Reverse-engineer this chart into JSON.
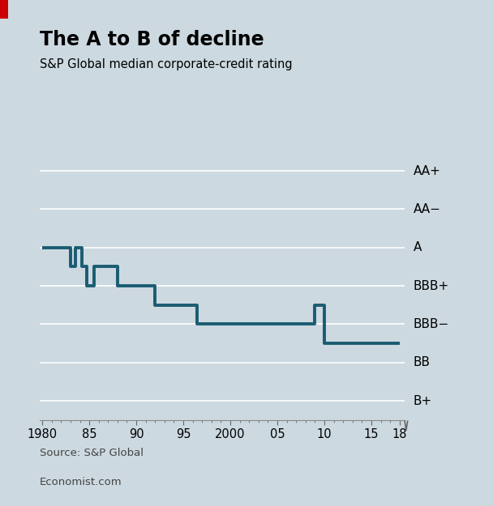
{
  "title": "The A to B of decline",
  "subtitle": "S&P Global median corporate-credit rating",
  "source": "Source: S&P Global",
  "footer": "Economist.com",
  "bg_color": "#ccd9e0",
  "line_color": "#1a5c72",
  "grid_color": "#ffffff",
  "title_color": "#000000",
  "source_color": "#444444",
  "grid_levels": [
    7,
    6,
    5,
    4,
    3,
    2,
    1
  ],
  "grid_labels": [
    "AA+",
    "AA−",
    "A",
    "BBB+",
    "BBB−",
    "BB",
    "B+"
  ],
  "xmin": 1980,
  "xmax": 2018.5,
  "ymin": 0.5,
  "ymax": 7.5,
  "step_data": [
    [
      1980,
      5
    ],
    [
      1983.0,
      5
    ],
    [
      1983.0,
      4.5
    ],
    [
      1983.5,
      4.5
    ],
    [
      1983.5,
      5
    ],
    [
      1984.2,
      5
    ],
    [
      1984.2,
      4.5
    ],
    [
      1984.7,
      4.5
    ],
    [
      1984.7,
      4
    ],
    [
      1985.5,
      4
    ],
    [
      1985.5,
      4.5
    ],
    [
      1988.0,
      4.5
    ],
    [
      1988.0,
      4
    ],
    [
      1992.0,
      4
    ],
    [
      1992.0,
      3.5
    ],
    [
      1996.5,
      3.5
    ],
    [
      1996.5,
      3
    ],
    [
      2009.0,
      3
    ],
    [
      2009.0,
      3.5
    ],
    [
      2010.0,
      3.5
    ],
    [
      2010.0,
      2.5
    ],
    [
      2018.0,
      2.5
    ]
  ],
  "xtick_labels": [
    "1980",
    "85",
    "90",
    "95",
    "2000",
    "05",
    "10",
    "15",
    "18"
  ],
  "xtick_positions": [
    1980,
    1985,
    1990,
    1995,
    2000,
    2005,
    2010,
    2015,
    2018
  ],
  "red_bar_color": "#cc0000"
}
